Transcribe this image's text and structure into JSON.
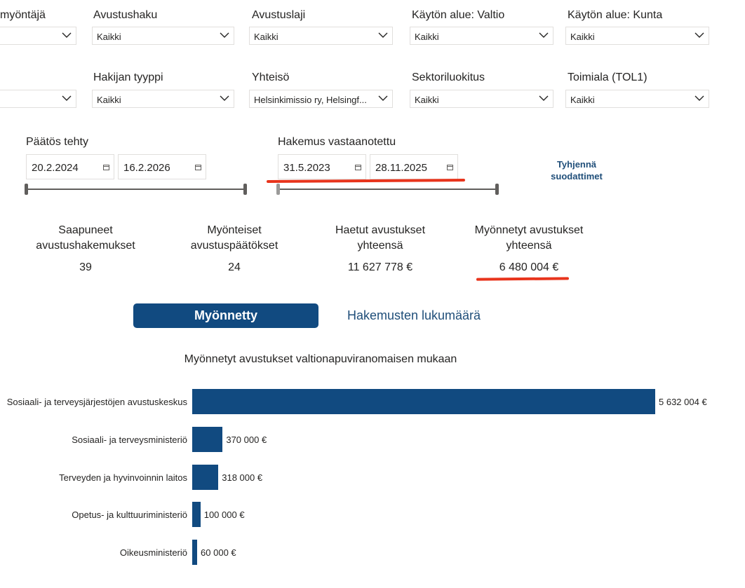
{
  "filters_row1": [
    {
      "label": "myöntäjä",
      "value": ""
    },
    {
      "label": "Avustushaku",
      "value": "Kaikki"
    },
    {
      "label": "Avustuslaji",
      "value": "Kaikki"
    },
    {
      "label": "Käytön alue: Valtio",
      "value": "Kaikki"
    },
    {
      "label": "Käytön alue: Kunta",
      "value": "Kaikki"
    }
  ],
  "filters_row2": [
    {
      "label": "",
      "value": ""
    },
    {
      "label": "Hakijan tyyppi",
      "value": "Kaikki"
    },
    {
      "label": "Yhteisö",
      "value": "Helsinkimissio ry, Helsingf..."
    },
    {
      "label": "Sektoriluokitus",
      "value": "Kaikki"
    },
    {
      "label": "Toimiala (TOL1)",
      "value": "Kaikki"
    }
  ],
  "date_filters": {
    "decision": {
      "label": "Päätös tehty",
      "start": "20.2.2024",
      "end": "16.2.2026"
    },
    "received": {
      "label": "Hakemus vastaanotettu",
      "start": "31.5.2023",
      "end": "28.11.2025"
    }
  },
  "clear_filters": {
    "line1": "Tyhjennä",
    "line2": "suodattimet"
  },
  "kpis": [
    {
      "label1": "Saapuneet",
      "label2": "avustushakemukset",
      "value": "39"
    },
    {
      "label1": "Myönteiset",
      "label2": "avustuspäätökset",
      "value": "24"
    },
    {
      "label1": "Haetut avustukset",
      "label2": "yhteensä",
      "value": "11 627 778 €"
    },
    {
      "label1": "Myönnetyt avustukset",
      "label2": "yhteensä",
      "value": "6 480 004 €"
    }
  ],
  "toggle": {
    "active": "Myönnetty",
    "inactive": "Hakemusten lukumäärä"
  },
  "colors": {
    "accent": "#114a80",
    "annotation": "#e8341c",
    "link": "#1f4e79"
  },
  "chart_data": {
    "type": "bar",
    "orientation": "horizontal",
    "title": "Myönnetyt avustukset valtionapuviranomaisen mukaan",
    "categories": [
      "Sosiaali- ja terveysjärjestöjen avustuskeskus",
      "Sosiaali- ja terveysministeriö",
      "Terveyden ja hyvinvoinnin laitos",
      "Opetus- ja kulttuuriministeriö",
      "Oikeusministeriö"
    ],
    "values": [
      5632004,
      370000,
      318000,
      100000,
      60000
    ],
    "value_labels": [
      "5 632 004 €",
      "370 000 €",
      "318 000 €",
      "100 000 €",
      "60 000 €"
    ],
    "xlim": [
      0,
      5632004
    ],
    "grid": false,
    "legend": "none"
  }
}
